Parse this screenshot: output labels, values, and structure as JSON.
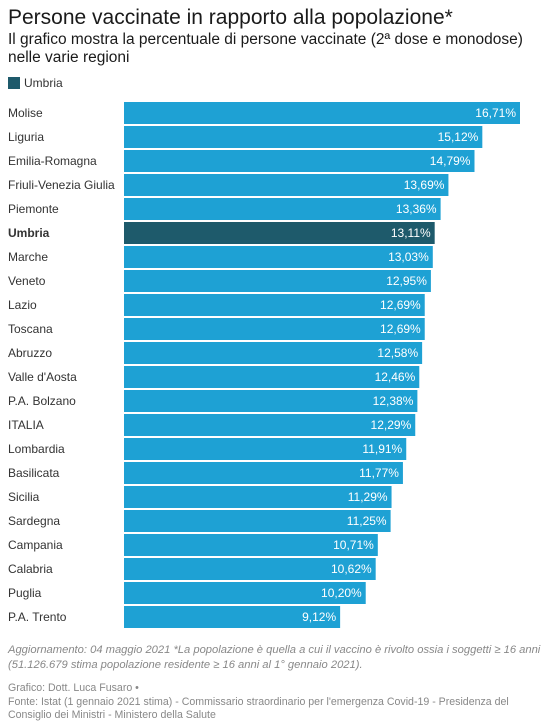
{
  "header": {
    "title": "Persone vaccinate in rapporto alla popolazione*",
    "subtitle": "Il grafico mostra la percentuale di persone vaccinate (2ª dose e monodose) nelle varie regioni"
  },
  "legend": {
    "label": "Umbria",
    "color": "#1e5a6b"
  },
  "chart_data": {
    "type": "bar",
    "orientation": "horizontal",
    "categories": [
      "Molise",
      "Liguria",
      "Emilia-Romagna",
      "Friuli-Venezia Giulia",
      "Piemonte",
      "Umbria",
      "Marche",
      "Veneto",
      "Lazio",
      "Toscana",
      "Abruzzo",
      "Valle d'Aosta",
      "P.A. Bolzano",
      "ITALIA",
      "Lombardia",
      "Basilicata",
      "Sicilia",
      "Sardegna",
      "Campania",
      "Calabria",
      "Puglia",
      "P.A. Trento"
    ],
    "values": [
      16.71,
      15.12,
      14.79,
      13.69,
      13.36,
      13.11,
      13.03,
      12.95,
      12.69,
      12.69,
      12.58,
      12.46,
      12.38,
      12.29,
      11.91,
      11.77,
      11.29,
      11.25,
      10.71,
      10.62,
      10.2,
      9.12
    ],
    "value_labels": [
      "16,71%",
      "15,12%",
      "14,79%",
      "13,69%",
      "13,36%",
      "13,11%",
      "13,03%",
      "12,95%",
      "12,69%",
      "12,69%",
      "12,58%",
      "12,46%",
      "12,38%",
      "12,29%",
      "11,91%",
      "11,77%",
      "11,29%",
      "11,25%",
      "10,71%",
      "10,62%",
      "10,20%",
      "9,12%"
    ],
    "highlight": "Umbria",
    "xlim": [
      0,
      16.71
    ],
    "colors": {
      "default": "#1ea1d4",
      "highlight": "#1e5a6b"
    },
    "grid": false,
    "legend_position": "top-left"
  },
  "footer": {
    "note": "Aggiornamento: 04 maggio 2021 *La popolazione è quella a cui il vaccino è rivolto ossia i soggetti ≥ 16 anni (51.126.679 stima popolazione residente ≥ 16 anni al 1° gennaio 2021).",
    "credit": "Grafico: Dott. Luca Fusaro •",
    "source": "Fonte: Istat (1 gennaio 2021 stima) - Commissario straordinario per l'emergenza Covid-19 - Presidenza del Consiglio dei Ministri - Ministero della Salute"
  }
}
